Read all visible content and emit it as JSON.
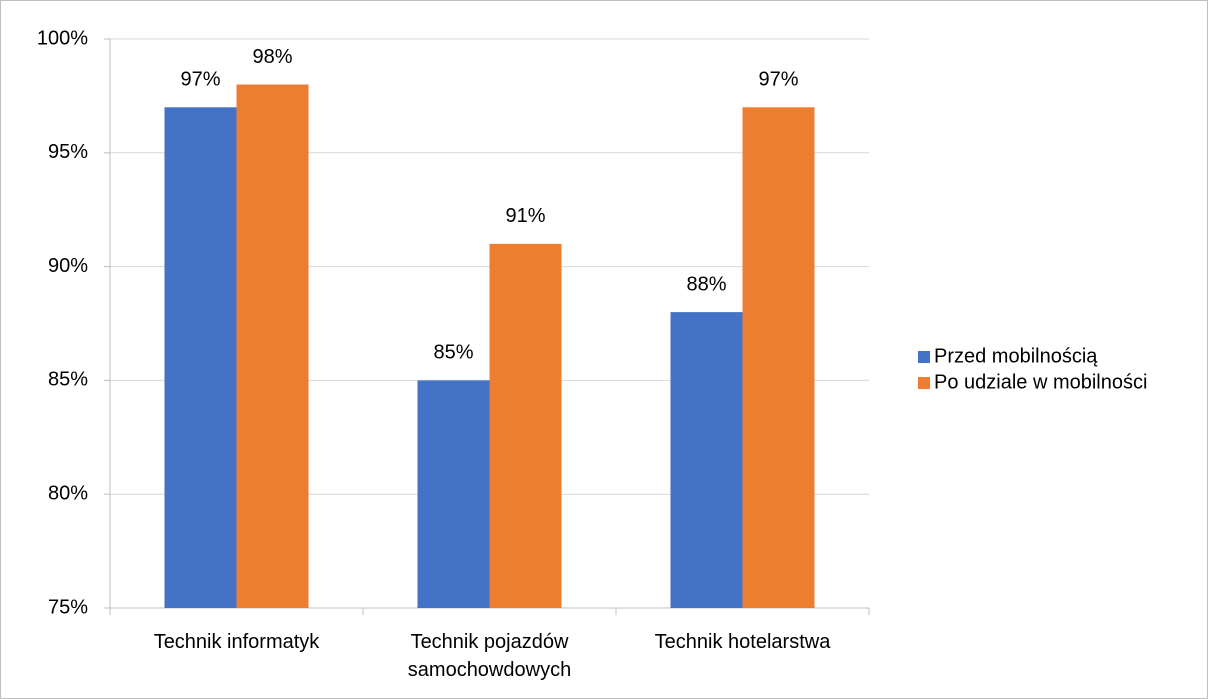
{
  "chart_data": {
    "type": "bar",
    "categories": [
      "Technik informatyk",
      "Technik pojazdów samochowdowych",
      "Technik hotelarstwa"
    ],
    "series": [
      {
        "name": "Przed mobilnością",
        "color": "#4472c4",
        "values": [
          97,
          85,
          88
        ],
        "value_labels": [
          "97%",
          "85%",
          "88%"
        ]
      },
      {
        "name": "Po udziale w mobilności",
        "color": "#ed7d31",
        "values": [
          98,
          91,
          97
        ],
        "value_labels": [
          "98%",
          "91%",
          "97%"
        ]
      }
    ],
    "ylim": [
      75,
      100
    ],
    "yticks": [
      {
        "value": 75,
        "label": "75%"
      },
      {
        "value": 80,
        "label": "80%"
      },
      {
        "value": 85,
        "label": "85%"
      },
      {
        "value": 90,
        "label": "90%"
      },
      {
        "value": 95,
        "label": "95%"
      },
      {
        "value": 100,
        "label": "100%"
      }
    ],
    "grid": true,
    "legend": "right"
  }
}
